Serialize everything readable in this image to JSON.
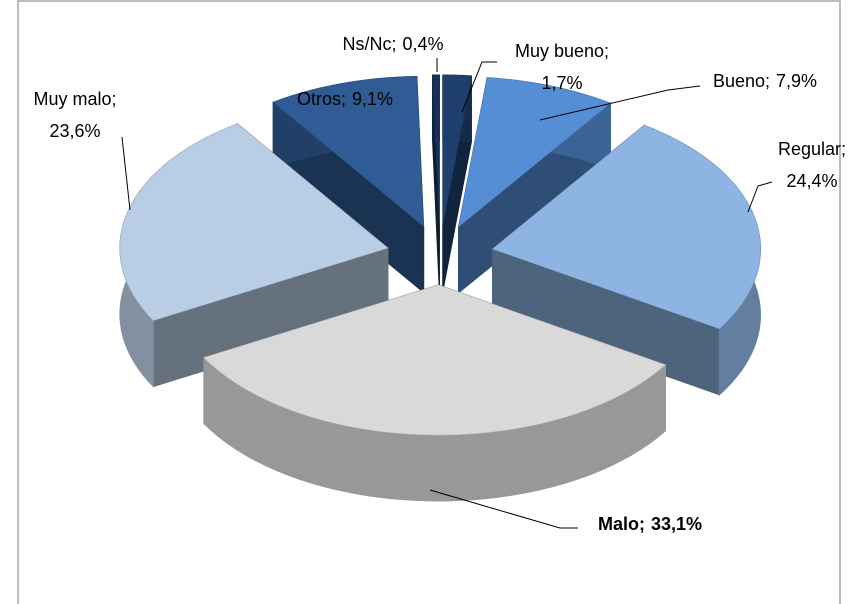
{
  "chart_data": {
    "type": "pie3d",
    "categories": [
      "Muy bueno;",
      "Bueno;",
      "Regular;",
      "Malo;",
      "Muy malo;",
      "Otros;",
      "Ns/Nc;"
    ],
    "values": [
      1.7,
      7.9,
      24.4,
      33.1,
      23.6,
      9.1,
      0.4
    ],
    "value_labels": [
      "1,7%",
      "7,9%",
      "24,4%",
      "33,1%",
      "23,6%",
      "9,1%",
      "0,4%"
    ],
    "colors": [
      "#1f3f6e",
      "#558ed5",
      "#8db4e2",
      "#d9d9d9",
      "#b9cde5",
      "#2f5c95",
      "#17325a"
    ],
    "exploded": true
  }
}
